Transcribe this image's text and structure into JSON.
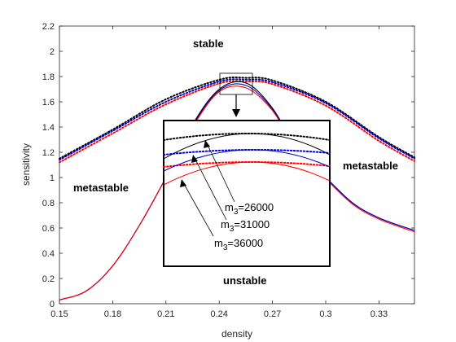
{
  "chart_data": {
    "type": "line",
    "xlabel": "density",
    "ylabel": "sensitivity",
    "xlim": [
      0.15,
      0.35
    ],
    "ylim": [
      0,
      2.2
    ],
    "xticks": [
      "0.15",
      "0.18",
      "0.21",
      "0.24",
      "0.27",
      "0.3",
      "0.33"
    ],
    "yticks": [
      "0",
      "0.2",
      "0.4",
      "0.6",
      "0.8",
      "1",
      "1.2",
      "1.4",
      "1.6",
      "1.8",
      "2",
      "2.2"
    ],
    "region_labels": {
      "stable": "stable",
      "metastable_left": "metastable",
      "metastable_right": "metastable",
      "unstable": "unstable"
    },
    "series": [
      {
        "name": "m3=26000 (dotted)",
        "color": "#000000",
        "style": "dotted",
        "x": [
          0.15,
          0.18,
          0.21,
          0.24,
          0.255,
          0.27,
          0.3,
          0.33,
          0.35
        ],
        "y": [
          1.15,
          1.38,
          1.62,
          1.775,
          1.79,
          1.77,
          1.6,
          1.32,
          1.16
        ]
      },
      {
        "name": "m3=31000 (dotted)",
        "color": "#0000cc",
        "style": "dotted",
        "x": [
          0.15,
          0.18,
          0.21,
          0.24,
          0.255,
          0.27,
          0.3,
          0.33,
          0.35
        ],
        "y": [
          1.14,
          1.37,
          1.6,
          1.76,
          1.775,
          1.755,
          1.59,
          1.31,
          1.15
        ]
      },
      {
        "name": "m3=36000 (dotted)",
        "color": "#ff0000",
        "style": "dotted",
        "x": [
          0.15,
          0.18,
          0.21,
          0.24,
          0.255,
          0.27,
          0.3,
          0.33,
          0.35
        ],
        "y": [
          1.12,
          1.35,
          1.58,
          1.745,
          1.76,
          1.74,
          1.57,
          1.29,
          1.13
        ]
      },
      {
        "name": "m3=26000 (solid)",
        "color": "#000000",
        "style": "solid",
        "x": [
          0.15,
          0.165,
          0.18,
          0.195,
          0.21,
          0.225,
          0.24,
          0.255,
          0.27,
          0.285,
          0.3,
          0.315,
          0.33,
          0.35
        ],
        "y": [
          0.03,
          0.1,
          0.3,
          0.62,
          1.0,
          1.42,
          1.7,
          1.75,
          1.55,
          1.2,
          1.0,
          0.8,
          0.68,
          0.58
        ]
      },
      {
        "name": "m3=31000 (solid)",
        "color": "#0000cc",
        "style": "solid",
        "x": [
          0.15,
          0.165,
          0.18,
          0.195,
          0.21,
          0.225,
          0.24,
          0.255,
          0.27,
          0.285,
          0.3,
          0.315,
          0.33,
          0.35
        ],
        "y": [
          0.03,
          0.1,
          0.3,
          0.62,
          1.0,
          1.41,
          1.69,
          1.73,
          1.54,
          1.2,
          1.0,
          0.8,
          0.68,
          0.58
        ]
      },
      {
        "name": "m3=36000 (solid)",
        "color": "#ff0000",
        "style": "solid",
        "x": [
          0.15,
          0.165,
          0.18,
          0.195,
          0.21,
          0.225,
          0.24,
          0.255,
          0.27,
          0.285,
          0.3,
          0.315,
          0.33,
          0.35
        ],
        "y": [
          0.03,
          0.1,
          0.3,
          0.62,
          1.0,
          1.4,
          1.68,
          1.71,
          1.53,
          1.19,
          0.99,
          0.79,
          0.67,
          0.57
        ]
      }
    ],
    "inset": {
      "callouts": [
        {
          "base": "m",
          "sub": "3",
          "value": "=26000"
        },
        {
          "base": "m",
          "sub": "3",
          "value": "=31000"
        },
        {
          "base": "m",
          "sub": "3",
          "value": "=36000"
        }
      ]
    }
  }
}
